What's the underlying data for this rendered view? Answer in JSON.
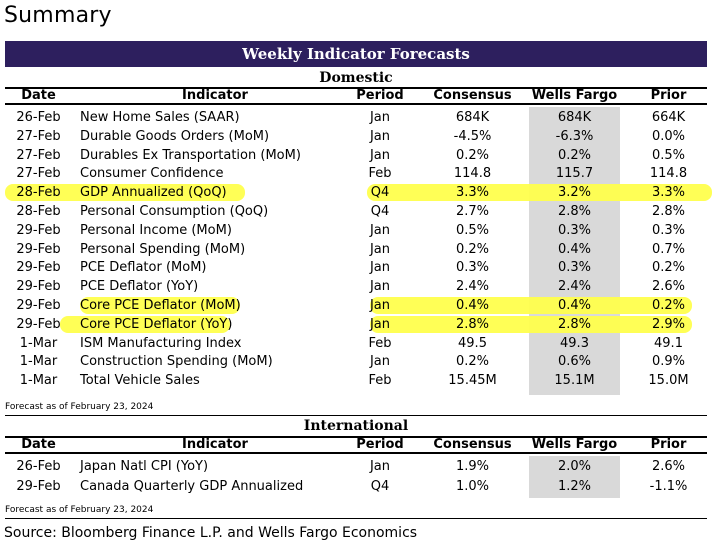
{
  "page_title": "Summary",
  "banner_title": "Weekly Indicator Forecasts",
  "columns": {
    "date": "Date",
    "indicator": "Indicator",
    "period": "Period",
    "consensus": "Consensus",
    "wells_fargo": "Wells Fargo",
    "prior": "Prior"
  },
  "domestic": {
    "title": "Domestic",
    "rows": [
      {
        "date": "26-Feb",
        "indicator": "New Home Sales (SAAR)",
        "period": "Jan",
        "consensus": "684K",
        "wells_fargo": "684K",
        "prior": "664K"
      },
      {
        "date": "27-Feb",
        "indicator": "Durable Goods Orders (MoM)",
        "period": "Jan",
        "consensus": "-4.5%",
        "wells_fargo": "-6.3%",
        "prior": "0.0%"
      },
      {
        "date": "27-Feb",
        "indicator": "Durables Ex Transportation (MoM)",
        "period": "Jan",
        "consensus": "0.2%",
        "wells_fargo": "0.2%",
        "prior": "0.5%"
      },
      {
        "date": "27-Feb",
        "indicator": "Consumer Confidence",
        "period": "Feb",
        "consensus": "114.8",
        "wells_fargo": "115.7",
        "prior": "114.8"
      },
      {
        "date": "28-Feb",
        "indicator": "GDP Annualized (QoQ)",
        "period": "Q4",
        "consensus": "3.3%",
        "wells_fargo": "3.2%",
        "prior": "3.3%"
      },
      {
        "date": "28-Feb",
        "indicator": "Personal Consumption (QoQ)",
        "period": "Q4",
        "consensus": "2.7%",
        "wells_fargo": "2.8%",
        "prior": "2.8%"
      },
      {
        "date": "29-Feb",
        "indicator": "Personal Income (MoM)",
        "period": "Jan",
        "consensus": "0.5%",
        "wells_fargo": "0.3%",
        "prior": "0.3%"
      },
      {
        "date": "29-Feb",
        "indicator": "Personal Spending (MoM)",
        "period": "Jan",
        "consensus": "0.2%",
        "wells_fargo": "0.4%",
        "prior": "0.7%"
      },
      {
        "date": "29-Feb",
        "indicator": "PCE Deflator (MoM)",
        "period": "Jan",
        "consensus": "0.3%",
        "wells_fargo": "0.3%",
        "prior": "0.2%"
      },
      {
        "date": "29-Feb",
        "indicator": "PCE Deflator (YoY)",
        "period": "Jan",
        "consensus": "2.4%",
        "wells_fargo": "2.4%",
        "prior": "2.6%"
      },
      {
        "date": "29-Feb",
        "indicator": "Core PCE Deflator (MoM)",
        "period": "Jan",
        "consensus": "0.4%",
        "wells_fargo": "0.4%",
        "prior": "0.2%"
      },
      {
        "date": "29-Feb",
        "indicator": "Core PCE Deflator (YoY)",
        "period": "Jan",
        "consensus": "2.8%",
        "wells_fargo": "2.8%",
        "prior": "2.9%"
      },
      {
        "date": "1-Mar",
        "indicator": "ISM Manufacturing Index",
        "period": "Feb",
        "consensus": "49.5",
        "wells_fargo": "49.3",
        "prior": "49.1"
      },
      {
        "date": "1-Mar",
        "indicator": "Construction Spending (MoM)",
        "period": "Jan",
        "consensus": "0.2%",
        "wells_fargo": "0.6%",
        "prior": "0.9%"
      },
      {
        "date": "1-Mar",
        "indicator": "Total Vehicle Sales",
        "period": "Feb",
        "consensus": "15.45M",
        "wells_fargo": "15.1M",
        "prior": "15.0M"
      }
    ],
    "highlighted_rows": [
      4,
      10,
      11
    ],
    "note": "Forecast as of February 23, 2024"
  },
  "international": {
    "title": "International",
    "rows": [
      {
        "date": "26-Feb",
        "indicator": "Japan Natl CPI (YoY)",
        "period": "Jan",
        "consensus": "1.9%",
        "wells_fargo": "2.0%",
        "prior": "2.6%"
      },
      {
        "date": "29-Feb",
        "indicator": "Canada Quarterly GDP Annualized",
        "period": "Q4",
        "consensus": "1.0%",
        "wells_fargo": "1.2%",
        "prior": "-1.1%"
      }
    ],
    "note": "Forecast as of February 23, 2024"
  },
  "source": "Source: Bloomberg Finance L.P. and Wells Fargo Economics",
  "colors": {
    "banner_bg": "#2d1f5e",
    "highlight": "#ffff4d",
    "wells_fargo_shade": "#d9d9d9"
  }
}
